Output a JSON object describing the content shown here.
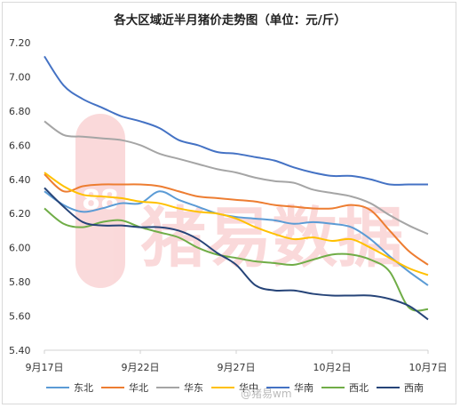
{
  "chart_data": {
    "type": "line",
    "title": "各大区域近半月猪价走势图（单位：元/斤）",
    "xlabel": "",
    "ylabel": "",
    "ylim": [
      5.4,
      7.2
    ],
    "yticks": [
      "5.40",
      "5.60",
      "5.80",
      "6.00",
      "6.20",
      "6.40",
      "6.60",
      "6.80",
      "7.00",
      "7.20"
    ],
    "x_tick_labels": [
      "9月17日",
      "9月22日",
      "9月27日",
      "10月2日",
      "10月7日"
    ],
    "x_tick_positions": [
      0,
      5,
      10,
      15,
      20
    ],
    "x_range": [
      0,
      20
    ],
    "grid": false,
    "legend_position": "bottom",
    "series": [
      {
        "name": "东北",
        "color": "#5B9BD5",
        "values": [
          6.33,
          6.25,
          6.21,
          6.23,
          6.26,
          6.26,
          6.33,
          6.28,
          6.24,
          6.2,
          6.18,
          6.17,
          6.16,
          6.14,
          6.15,
          6.14,
          6.12,
          6.05,
          5.95,
          5.86,
          5.78
        ]
      },
      {
        "name": "华北",
        "color": "#ED7D31",
        "values": [
          6.43,
          6.33,
          6.36,
          6.37,
          6.37,
          6.37,
          6.36,
          6.33,
          6.3,
          6.29,
          6.28,
          6.27,
          6.25,
          6.24,
          6.23,
          6.23,
          6.25,
          6.22,
          6.1,
          5.98,
          5.9
        ]
      },
      {
        "name": "华东",
        "color": "#A5A5A5",
        "values": [
          6.74,
          6.66,
          6.65,
          6.64,
          6.63,
          6.6,
          6.55,
          6.52,
          6.49,
          6.46,
          6.44,
          6.41,
          6.39,
          6.38,
          6.34,
          6.32,
          6.3,
          6.26,
          6.19,
          6.13,
          6.08
        ]
      },
      {
        "name": "华中",
        "color": "#FFC000",
        "values": [
          6.44,
          6.36,
          6.31,
          6.3,
          6.29,
          6.27,
          6.26,
          6.23,
          6.21,
          6.2,
          6.17,
          6.12,
          6.08,
          6.05,
          6.06,
          6.04,
          6.05,
          6.0,
          5.94,
          5.88,
          5.84
        ]
      },
      {
        "name": "华南",
        "color": "#4472C4",
        "values": [
          7.12,
          6.95,
          6.87,
          6.82,
          6.77,
          6.74,
          6.7,
          6.63,
          6.6,
          6.56,
          6.55,
          6.53,
          6.51,
          6.47,
          6.44,
          6.42,
          6.42,
          6.4,
          6.37,
          6.37,
          6.37
        ]
      },
      {
        "name": "西北",
        "color": "#70AD47",
        "values": [
          6.23,
          6.14,
          6.12,
          6.15,
          6.16,
          6.12,
          6.09,
          6.06,
          6.0,
          5.96,
          5.94,
          5.92,
          5.91,
          5.9,
          5.93,
          5.96,
          5.96,
          5.93,
          5.86,
          5.65,
          5.64
        ]
      },
      {
        "name": "西南",
        "color": "#264478",
        "values": [
          6.35,
          6.24,
          6.15,
          6.13,
          6.13,
          6.12,
          6.12,
          6.1,
          6.05,
          5.97,
          5.9,
          5.78,
          5.75,
          5.75,
          5.73,
          5.72,
          5.72,
          5.72,
          5.7,
          5.66,
          5.58
        ]
      }
    ]
  },
  "watermark": {
    "badge_text": "88",
    "text": "猪易数据",
    "color": "#e8474c"
  },
  "weibo_watermark": "@猪易wm"
}
